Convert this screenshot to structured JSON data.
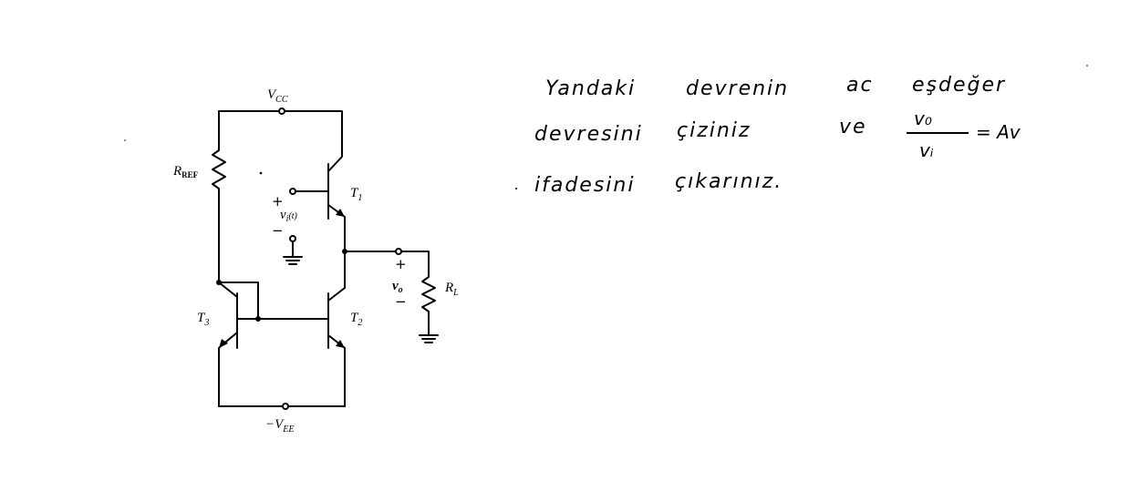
{
  "circuit": {
    "vcc_label": {
      "main": "V",
      "sub": "CC"
    },
    "vee_label": {
      "prefix": "−",
      "main": "V",
      "sub": "EE"
    },
    "rref_label": {
      "main": "R",
      "sub": "REF"
    },
    "rl_label": {
      "main": "R",
      "sub": "L"
    },
    "t1_label": {
      "main": "T",
      "sub": "1"
    },
    "t2_label": {
      "main": "T",
      "sub": "2"
    },
    "t3_label": {
      "main": "T",
      "sub": "3"
    },
    "vin_label": {
      "main": "v",
      "sub": "i",
      "suffix": "(t)"
    },
    "vout_label": {
      "main": "v",
      "sub": "o"
    },
    "plus_sign": "+",
    "minus_sign": "−"
  },
  "handwriting": {
    "line1": {
      "w1": "Yandaki",
      "w2": "devrenin",
      "w3": "ac",
      "w4": "eşdeğer"
    },
    "line2": {
      "w1": "devresini",
      "w2": "çiziniz",
      "w3": "ve"
    },
    "fraction": {
      "numerator": "v₀",
      "denominator": "vᵢ",
      "rhs": "= Av"
    },
    "line3": {
      "w1": "ifadesini",
      "w2": "çıkarınız."
    }
  }
}
